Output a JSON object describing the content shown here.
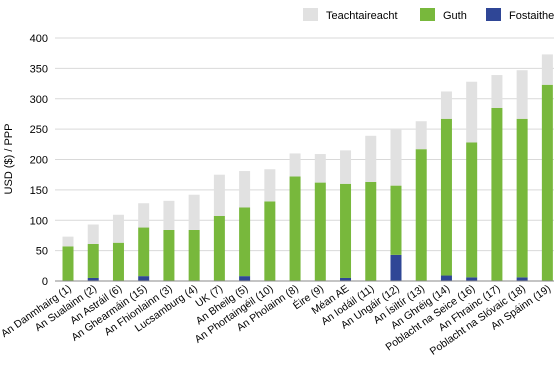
{
  "chart_data": {
    "type": "bar",
    "stacked": true,
    "title": "",
    "xlabel": "",
    "ylabel": "USD ($) / PPP",
    "ylim": [
      0,
      400
    ],
    "yticks": [
      0,
      50,
      100,
      150,
      200,
      250,
      300,
      350,
      400
    ],
    "grid": true,
    "legend_position": "top-right",
    "categories": [
      "An Danmhairg (1)",
      "An Sualainn (2)",
      "An Astráil (6)",
      "An Ghearmáin (15)",
      "An Fhionlainn (3)",
      "Lucsamburg (4)",
      "UK (7)",
      "An Bheilg (5)",
      "An Phortaingéil (10)",
      "An Pholainn (8)",
      "Éire (9)",
      "Méan AE",
      "An Iodáil (11)",
      "An Ungáir (12)",
      "An Ísiltír (13)",
      "An Ghréig (14)",
      "Poblacht na Seice (16)",
      "An Fhrainc (17)",
      "Poblacht na Slóvaic (18)",
      "An Spáinn (19)"
    ],
    "series": [
      {
        "name": "Fostaitheoir",
        "color": "#2f4696",
        "values": [
          0,
          5,
          0,
          8,
          0,
          0,
          0,
          8,
          0,
          0,
          0,
          5,
          0,
          43,
          0,
          9,
          6,
          0,
          6,
          0
        ]
      },
      {
        "name": "Guth",
        "color": "#78b83c",
        "values": [
          57,
          56,
          63,
          80,
          84,
          84,
          107,
          113,
          131,
          172,
          162,
          155,
          163,
          114,
          217,
          258,
          222,
          285,
          261,
          323
        ]
      },
      {
        "name": "Teachtaireacht",
        "color": "#e1e1e1",
        "values": [
          16,
          32,
          46,
          40,
          48,
          58,
          68,
          60,
          53,
          38,
          47,
          55,
          76,
          92,
          46,
          45,
          100,
          54,
          80,
          50
        ]
      }
    ],
    "legend_order": [
      "Teachtaireacht",
      "Guth",
      "Fostaitheoir"
    ]
  }
}
